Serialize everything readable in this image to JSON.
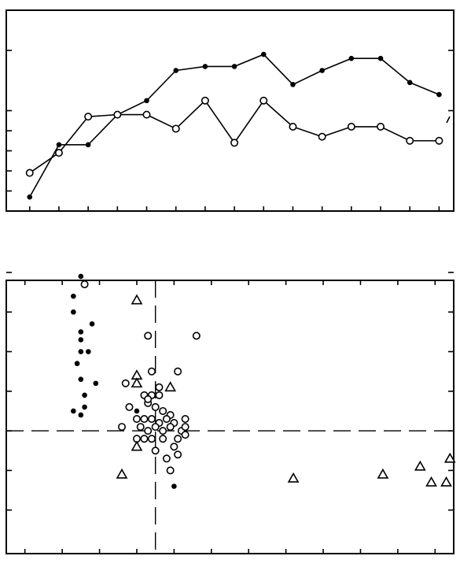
{
  "chart_data": [
    {
      "type": "line",
      "title": "",
      "xlabel": "",
      "ylabel": "",
      "x": [
        1,
        2,
        3,
        4,
        5,
        6,
        7,
        8,
        9,
        10,
        11,
        12,
        13,
        14,
        15
      ],
      "xlim": [
        0.2,
        15.5
      ],
      "ylim": [
        0,
        10
      ],
      "xticks": [
        1,
        2,
        3,
        4,
        5,
        6,
        7,
        8,
        9,
        10,
        11,
        12,
        13,
        14,
        15
      ],
      "yticks": [
        1,
        2,
        3,
        4,
        5,
        8
      ],
      "series": [
        {
          "marker": "filled-circle",
          "color": "#000000",
          "values": [
            0.7,
            3.3,
            3.3,
            4.8,
            5.5,
            7.0,
            7.2,
            7.2,
            7.8,
            6.3,
            7.0,
            7.6,
            7.6,
            6.4,
            5.8
          ]
        },
        {
          "marker": "open-circle",
          "color": "#000000",
          "values": [
            1.9,
            2.9,
            4.7,
            4.8,
            4.8,
            4.1,
            5.5,
            3.4,
            5.5,
            4.2,
            3.7,
            4.2,
            4.2,
            3.5,
            3.5
          ]
        }
      ],
      "grid": false,
      "legend": "none"
    },
    {
      "type": "scatter",
      "title": "",
      "xlabel": "",
      "ylabel": "",
      "xlim": [
        -0.5,
        11.5
      ],
      "ylim": [
        -3.1,
        3.8
      ],
      "xticks": [
        0,
        1,
        2,
        3,
        4,
        5,
        6,
        7,
        8,
        9,
        10,
        11
      ],
      "yticks": [
        -2,
        -1,
        0,
        1,
        2,
        3,
        4
      ],
      "reference_lines": {
        "x": 3.5,
        "y": 0,
        "style": "dashed"
      },
      "grid": false,
      "legend": "none",
      "series": [
        {
          "marker": "filled-circle",
          "color": "#000000",
          "points": [
            [
              1.3,
              3.4
            ],
            [
              1.5,
              3.9
            ],
            [
              1.3,
              3.0
            ],
            [
              1.5,
              2.5
            ],
            [
              1.8,
              2.7
            ],
            [
              1.5,
              2.3
            ],
            [
              1.5,
              2.0
            ],
            [
              1.7,
              2.0
            ],
            [
              1.4,
              1.7
            ],
            [
              1.5,
              1.3
            ],
            [
              1.9,
              1.2
            ],
            [
              1.6,
              0.9
            ],
            [
              1.3,
              0.5
            ],
            [
              1.6,
              0.6
            ],
            [
              1.5,
              0.4
            ],
            [
              3.0,
              0.5
            ],
            [
              4.0,
              -1.4
            ]
          ]
        },
        {
          "marker": "open-circle",
          "color": "#000000",
          "points": [
            [
              1.6,
              3.7
            ],
            [
              3.3,
              2.4
            ],
            [
              4.6,
              2.4
            ],
            [
              2.7,
              1.2
            ],
            [
              2.8,
              0.6
            ],
            [
              2.6,
              0.1
            ],
            [
              3.4,
              1.5
            ],
            [
              4.1,
              1.5
            ],
            [
              3.2,
              0.9
            ],
            [
              3.4,
              0.9
            ],
            [
              3.6,
              0.9
            ],
            [
              3.3,
              0.7
            ],
            [
              3.5,
              0.6
            ],
            [
              3.7,
              0.5
            ],
            [
              3.9,
              0.4
            ],
            [
              3.0,
              0.3
            ],
            [
              3.2,
              0.3
            ],
            [
              3.4,
              0.3
            ],
            [
              3.6,
              0.2
            ],
            [
              3.8,
              0.3
            ],
            [
              4.0,
              0.2
            ],
            [
              4.3,
              0.3
            ],
            [
              3.1,
              0.1
            ],
            [
              3.3,
              0.0
            ],
            [
              3.5,
              0.1
            ],
            [
              3.7,
              0.0
            ],
            [
              3.9,
              0.1
            ],
            [
              4.2,
              0.0
            ],
            [
              4.3,
              0.1
            ],
            [
              3.0,
              -0.2
            ],
            [
              3.2,
              -0.2
            ],
            [
              3.4,
              -0.2
            ],
            [
              3.7,
              -0.2
            ],
            [
              4.1,
              -0.2
            ],
            [
              4.3,
              -0.1
            ],
            [
              3.5,
              -0.5
            ],
            [
              4.0,
              -0.4
            ],
            [
              3.8,
              -0.7
            ],
            [
              4.1,
              -0.6
            ],
            [
              3.9,
              -1.0
            ],
            [
              3.3,
              0.8
            ],
            [
              3.6,
              1.1
            ]
          ]
        },
        {
          "marker": "open-triangle",
          "color": "#000000",
          "points": [
            [
              3.0,
              3.3
            ],
            [
              3.0,
              1.4
            ],
            [
              3.0,
              1.2
            ],
            [
              3.9,
              1.1
            ],
            [
              2.6,
              -1.1
            ],
            [
              3.0,
              -0.4
            ],
            [
              7.2,
              -1.2
            ],
            [
              9.6,
              -1.1
            ],
            [
              10.6,
              -0.9
            ],
            [
              10.9,
              -1.3
            ],
            [
              11.3,
              -1.3
            ],
            [
              11.4,
              -0.7
            ]
          ]
        }
      ]
    }
  ]
}
